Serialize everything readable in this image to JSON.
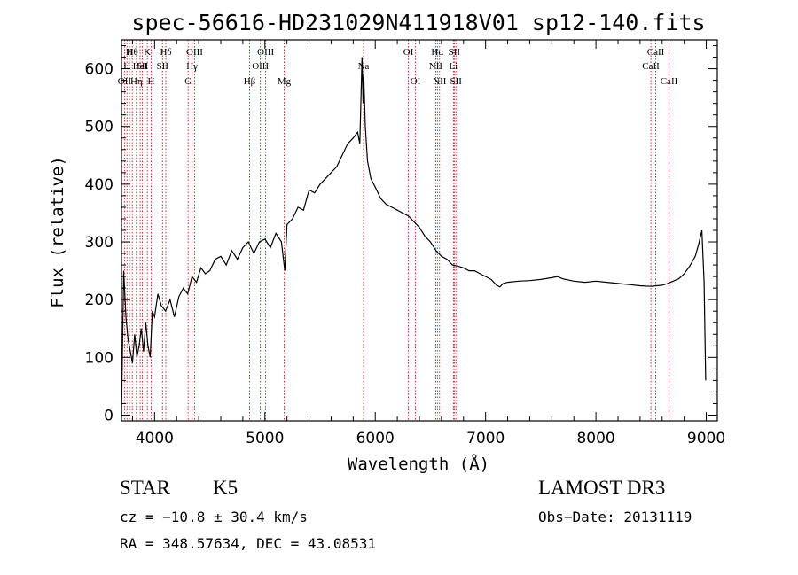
{
  "chart_data": {
    "type": "line",
    "title": "spec-56616-HD231029N411918V01_sp12-140.fits",
    "xlabel": "Wavelength (Å)",
    "ylabel": "Flux (relative)",
    "xlim": [
      3700,
      9100
    ],
    "ylim": [
      -10,
      650
    ],
    "xticks": [
      4000,
      5000,
      6000,
      7000,
      8000,
      9000
    ],
    "yticks": [
      0,
      100,
      200,
      300,
      400,
      500,
      600
    ],
    "grid": false,
    "series": [
      {
        "name": "flux",
        "x": [
          3700,
          3720,
          3740,
          3760,
          3780,
          3800,
          3820,
          3840,
          3860,
          3880,
          3900,
          3920,
          3940,
          3960,
          3980,
          4000,
          4030,
          4060,
          4100,
          4140,
          4180,
          4220,
          4260,
          4300,
          4340,
          4380,
          4420,
          4460,
          4500,
          4550,
          4600,
          4650,
          4700,
          4750,
          4800,
          4850,
          4900,
          4950,
          5000,
          5050,
          5100,
          5150,
          5180,
          5200,
          5250,
          5300,
          5350,
          5400,
          5450,
          5500,
          5550,
          5600,
          5650,
          5700,
          5750,
          5800,
          5840,
          5860,
          5880,
          5890,
          5895,
          5900,
          5910,
          5930,
          5960,
          6000,
          6050,
          6100,
          6150,
          6200,
          6250,
          6300,
          6350,
          6400,
          6450,
          6500,
          6550,
          6600,
          6650,
          6700,
          6750,
          6800,
          6850,
          6900,
          6950,
          7000,
          7050,
          7100,
          7130,
          7160,
          7200,
          7300,
          7400,
          7500,
          7600,
          7650,
          7700,
          7800,
          7900,
          8000,
          8100,
          8200,
          8300,
          8400,
          8500,
          8550,
          8600,
          8650,
          8700,
          8750,
          8800,
          8850,
          8900,
          8930,
          8960,
          8980,
          8995
        ],
        "y": [
          0,
          250,
          170,
          130,
          110,
          90,
          140,
          100,
          120,
          150,
          110,
          160,
          120,
          100,
          180,
          170,
          210,
          190,
          180,
          200,
          170,
          205,
          220,
          210,
          240,
          230,
          255,
          245,
          250,
          270,
          275,
          260,
          285,
          270,
          290,
          300,
          280,
          300,
          305,
          290,
          315,
          300,
          250,
          330,
          340,
          360,
          355,
          390,
          385,
          400,
          410,
          420,
          430,
          450,
          470,
          480,
          490,
          470,
          620,
          540,
          590,
          560,
          500,
          440,
          410,
          395,
          375,
          365,
          360,
          355,
          350,
          345,
          335,
          325,
          310,
          300,
          285,
          275,
          270,
          260,
          258,
          255,
          250,
          250,
          245,
          240,
          235,
          225,
          222,
          228,
          230,
          232,
          233,
          235,
          238,
          240,
          236,
          232,
          230,
          232,
          230,
          228,
          226,
          224,
          223,
          224,
          225,
          228,
          232,
          236,
          245,
          258,
          275,
          295,
          320,
          230,
          60
        ]
      }
    ],
    "lines": [
      {
        "wavelength": 3727,
        "label": "OII",
        "row": 3
      },
      {
        "wavelength": 3750,
        "label": "H",
        "row": 2
      },
      {
        "wavelength": 3772,
        "label": "H",
        "row": 1
      },
      {
        "wavelength": 3798,
        "label": "Hθ",
        "row": 1
      },
      {
        "wavelength": 3835,
        "label": "Hη",
        "row": 3
      },
      {
        "wavelength": 3869,
        "label": "HeI",
        "row": 2
      },
      {
        "wavelength": 3889,
        "label": "SII",
        "row": 2
      },
      {
        "wavelength": 3934,
        "label": "K",
        "row": 1
      },
      {
        "wavelength": 3969,
        "label": "H",
        "row": 3
      },
      {
        "wavelength": 4072,
        "label": "SII",
        "row": 2
      },
      {
        "wavelength": 4102,
        "label": "Hδ",
        "row": 1
      },
      {
        "wavelength": 4304,
        "label": "G",
        "row": 3
      },
      {
        "wavelength": 4340,
        "label": "Hγ",
        "row": 2
      },
      {
        "wavelength": 4363,
        "label": "OIII",
        "row": 1
      },
      {
        "wavelength": 4861,
        "label": "Hβ",
        "row": 3
      },
      {
        "wavelength": 4959,
        "label": "OIII",
        "row": 2
      },
      {
        "wavelength": 5007,
        "label": "OIII",
        "row": 1
      },
      {
        "wavelength": 5175,
        "label": "Mg",
        "row": 3
      },
      {
        "wavelength": 5894,
        "label": "Na",
        "row": 2
      },
      {
        "wavelength": 6300,
        "label": "OI",
        "row": 1
      },
      {
        "wavelength": 6364,
        "label": "OI",
        "row": 3
      },
      {
        "wavelength": 6548,
        "label": "NII",
        "row": 2
      },
      {
        "wavelength": 6563,
        "label": "Hα",
        "row": 1
      },
      {
        "wavelength": 6583,
        "label": "NII",
        "row": 3
      },
      {
        "wavelength": 6708,
        "label": "Li",
        "row": 2
      },
      {
        "wavelength": 6716,
        "label": "SII",
        "row": 1
      },
      {
        "wavelength": 6731,
        "label": "SII",
        "row": 3
      },
      {
        "wavelength": 8498,
        "label": "CaII",
        "row": 2
      },
      {
        "wavelength": 8542,
        "label": "CaII",
        "row": 1
      },
      {
        "wavelength": 8662,
        "label": "CaII",
        "row": 3
      }
    ]
  },
  "info": {
    "class": "STAR",
    "subclass": "K5",
    "survey": "LAMOST DR3",
    "cz": "cz = −10.8 ± 30.4 km/s",
    "obs_date": "Obs−Date: 20131119",
    "radec": "RA = 348.57634, DEC =  43.08531"
  },
  "colors": {
    "line_marker": "#c00000",
    "spectrum": "#000000",
    "axis": "#000000"
  }
}
